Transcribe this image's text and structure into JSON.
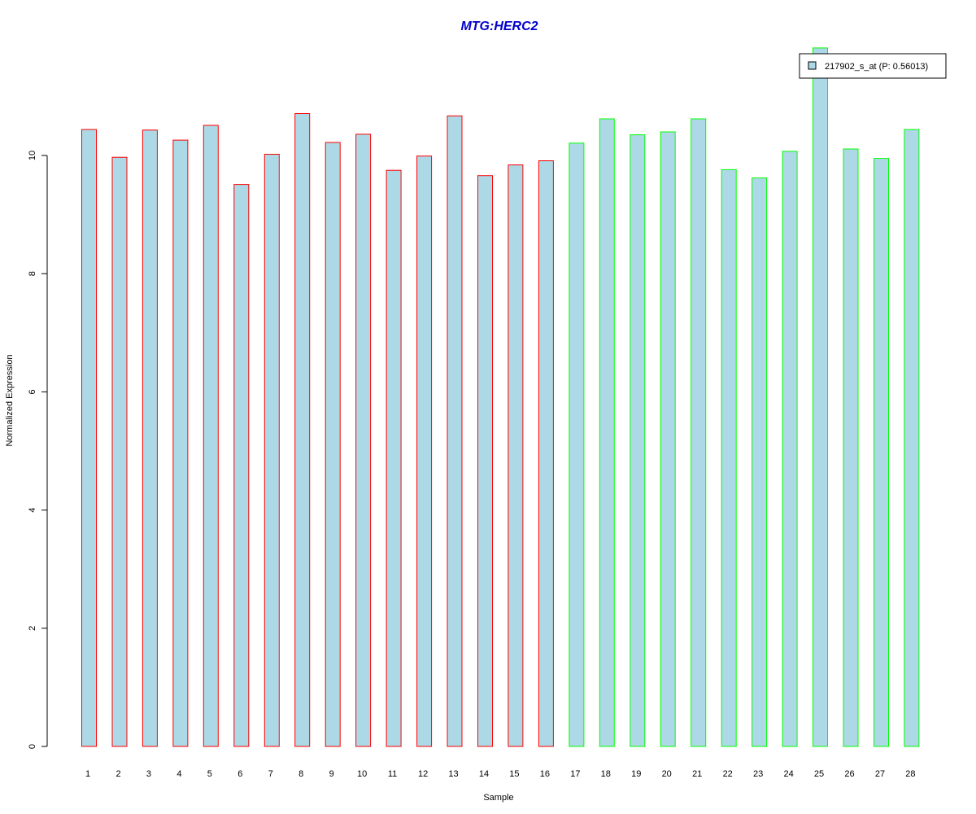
{
  "chart_data": {
    "type": "bar",
    "title": "MTG:HERC2",
    "xlabel": "Sample",
    "ylabel": "Normalized Expression",
    "ylim": [
      0,
      11.8
    ],
    "yticks": [
      0,
      2,
      4,
      6,
      8,
      10
    ],
    "categories": [
      "1",
      "2",
      "3",
      "4",
      "5",
      "6",
      "7",
      "8",
      "9",
      "10",
      "11",
      "12",
      "13",
      "14",
      "15",
      "16",
      "17",
      "18",
      "19",
      "20",
      "21",
      "22",
      "23",
      "24",
      "25",
      "26",
      "27",
      "28"
    ],
    "series": [
      {
        "name": "217902_s_at (P: 0.56013)",
        "values": [
          10.44,
          9.97,
          10.43,
          10.26,
          10.51,
          9.51,
          10.02,
          10.71,
          10.22,
          10.36,
          9.75,
          9.99,
          10.67,
          9.66,
          9.84,
          9.91,
          10.21,
          10.62,
          10.35,
          10.4,
          10.62,
          9.76,
          9.62,
          10.07,
          11.82,
          10.11,
          9.95,
          10.44
        ]
      }
    ],
    "bar_fill": "#add8e6",
    "border_colors": [
      "#ff0000",
      "#ff0000",
      "#ff0000",
      "#ff0000",
      "#ff0000",
      "#ff0000",
      "#ff0000",
      "#ff0000",
      "#ff0000",
      "#ff0000",
      "#ff0000",
      "#ff0000",
      "#ff0000",
      "#ff0000",
      "#ff0000",
      "#ff0000",
      "#00ff00",
      "#00ff00",
      "#00ff00",
      "#00ff00",
      "#00ff00",
      "#00ff00",
      "#00ff00",
      "#00ff00",
      "#00ff00",
      "#00ff00",
      "#00ff00",
      "#00ff00"
    ],
    "legend_position": "top-right",
    "grid": false
  }
}
